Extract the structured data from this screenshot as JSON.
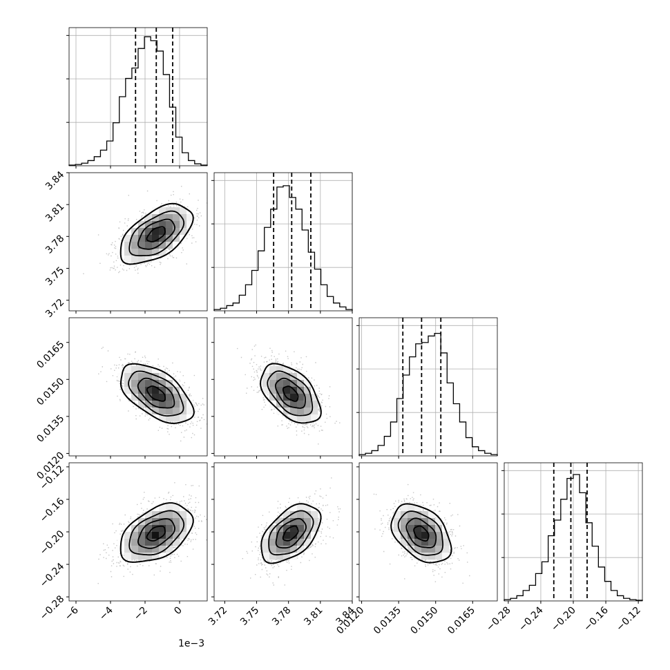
{
  "chart_data": {
    "type": "corner",
    "xlabel": "",
    "ylabel": "",
    "title": "",
    "grid": true,
    "parameters": [
      {
        "id": "p0",
        "range": [
          -6.4,
          1.6
        ],
        "ticks": [
          -6,
          -4,
          -2,
          0
        ],
        "tick_labels": [
          "−6",
          "−4",
          "−2",
          "0"
        ],
        "offset_label": "1e−3",
        "quantiles": [
          -2.55,
          -1.35,
          -0.4
        ],
        "hist": [
          0.005,
          0.01,
          0.02,
          0.04,
          0.07,
          0.12,
          0.19,
          0.33,
          0.53,
          0.67,
          0.75,
          0.9,
          0.99,
          0.96,
          0.88,
          0.7,
          0.45,
          0.22,
          0.1,
          0.04,
          0.015,
          0.005
        ]
      },
      {
        "id": "p1",
        "range": [
          3.71,
          3.84
        ],
        "ticks": [
          3.72,
          3.75,
          3.78,
          3.81,
          3.84
        ],
        "tick_labels": [
          "3.72",
          "3.75",
          "3.78",
          "3.81",
          "3.84"
        ],
        "quantiles": [
          3.766,
          3.783,
          3.801
        ],
        "hist": [
          0.01,
          0.02,
          0.04,
          0.06,
          0.12,
          0.2,
          0.31,
          0.46,
          0.64,
          0.78,
          0.95,
          0.96,
          0.87,
          0.78,
          0.62,
          0.45,
          0.32,
          0.2,
          0.11,
          0.06,
          0.03,
          0.01
        ]
      },
      {
        "id": "p2",
        "range": [
          0.0119,
          0.0175
        ],
        "ticks": [
          0.012,
          0.0135,
          0.015,
          0.0165
        ],
        "tick_labels": [
          "0.0120",
          "0.0135",
          "0.0150",
          "0.0165"
        ],
        "quantiles": [
          0.01367,
          0.01443,
          0.01521
        ],
        "hist": [
          0.01,
          0.02,
          0.04,
          0.08,
          0.15,
          0.26,
          0.44,
          0.62,
          0.76,
          0.86,
          0.87,
          0.92,
          0.94,
          0.79,
          0.56,
          0.4,
          0.26,
          0.14,
          0.07,
          0.04,
          0.02,
          0.01
        ]
      },
      {
        "id": "p3",
        "range": [
          -0.285,
          -0.115
        ],
        "ticks": [
          -0.28,
          -0.24,
          -0.2,
          -0.16,
          -0.12
        ],
        "tick_labels": [
          "−0.28",
          "−0.24",
          "−0.20",
          "−0.16",
          "−0.12"
        ],
        "quantiles": [
          -0.224,
          -0.203,
          -0.183
        ],
        "hist": [
          0.01,
          0.02,
          0.04,
          0.08,
          0.12,
          0.21,
          0.3,
          0.5,
          0.62,
          0.78,
          0.94,
          0.97,
          0.83,
          0.6,
          0.42,
          0.26,
          0.15,
          0.08,
          0.04,
          0.02,
          0.01,
          0.005
        ]
      }
    ],
    "pairs": [
      {
        "x": "p0",
        "y": "p1",
        "mean": [
          -1.35,
          3.782
        ],
        "sd": [
          1.05,
          0.014
        ],
        "corr": 0.55
      },
      {
        "x": "p0",
        "y": "p2",
        "mean": [
          -1.35,
          0.01442
        ],
        "sd": [
          1.05,
          0.0006
        ],
        "corr": -0.55
      },
      {
        "x": "p1",
        "y": "p2",
        "mean": [
          3.782,
          0.01442
        ],
        "sd": [
          0.014,
          0.0006
        ],
        "corr": -0.5
      },
      {
        "x": "p0",
        "y": "p3",
        "mean": [
          -1.35,
          -0.202
        ],
        "sd": [
          1.05,
          0.018
        ],
        "corr": 0.45
      },
      {
        "x": "p1",
        "y": "p3",
        "mean": [
          3.782,
          -0.202
        ],
        "sd": [
          0.014,
          0.018
        ],
        "corr": 0.5
      },
      {
        "x": "p2",
        "y": "p3",
        "mean": [
          0.01442,
          -0.202
        ],
        "sd": [
          0.0006,
          0.018
        ],
        "corr": -0.4
      }
    ],
    "contour_levels_sigma": [
      0.5,
      1.0,
      1.5,
      2.0
    ]
  }
}
